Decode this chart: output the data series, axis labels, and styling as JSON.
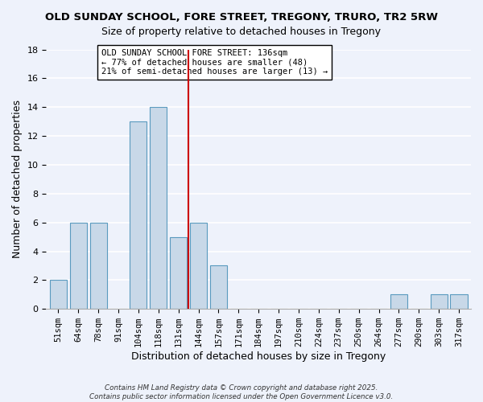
{
  "title": "OLD SUNDAY SCHOOL, FORE STREET, TREGONY, TRURO, TR2 5RW",
  "subtitle": "Size of property relative to detached houses in Tregony",
  "xlabel": "Distribution of detached houses by size in Tregony",
  "ylabel": "Number of detached properties",
  "bar_labels": [
    "51sqm",
    "64sqm",
    "78sqm",
    "91sqm",
    "104sqm",
    "118sqm",
    "131sqm",
    "144sqm",
    "157sqm",
    "171sqm",
    "184sqm",
    "197sqm",
    "210sqm",
    "224sqm",
    "237sqm",
    "250sqm",
    "264sqm",
    "277sqm",
    "290sqm",
    "303sqm",
    "317sqm"
  ],
  "bar_values": [
    2,
    6,
    6,
    0,
    13,
    14,
    5,
    6,
    3,
    0,
    0,
    0,
    0,
    0,
    0,
    0,
    0,
    1,
    0,
    1,
    1
  ],
  "bar_color": "#c8d8e8",
  "bar_edge_color": "#5a9abf",
  "ylim": [
    0,
    18
  ],
  "yticks": [
    0,
    2,
    4,
    6,
    8,
    10,
    12,
    14,
    16,
    18
  ],
  "vline_x_index": 6,
  "vline_color": "#cc0000",
  "annotation_line1": "OLD SUNDAY SCHOOL FORE STREET: 136sqm",
  "annotation_line2": "← 77% of detached houses are smaller (48)",
  "annotation_line3": "21% of semi-detached houses are larger (13) →",
  "annotation_bbox_color": "white",
  "annotation_bbox_edge": "black",
  "footer_line1": "Contains HM Land Registry data © Crown copyright and database right 2025.",
  "footer_line2": "Contains public sector information licensed under the Open Government Licence v3.0.",
  "background_color": "#eef2fb",
  "grid_color": "white"
}
